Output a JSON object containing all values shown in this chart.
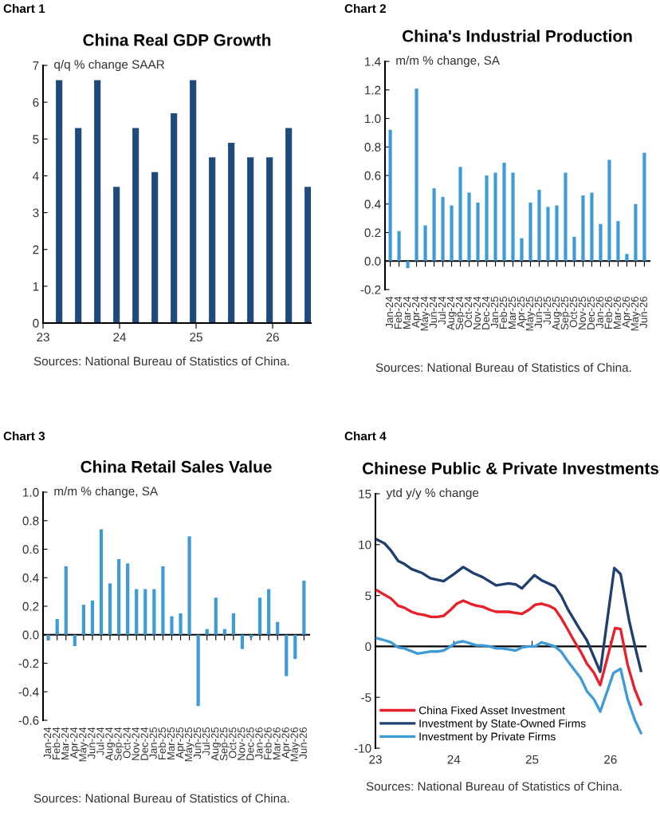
{
  "chart_data": [
    {
      "type": "bar",
      "title": "China Real GDP Growth",
      "ylabel": "q/q % change SAAR",
      "annotations": [
        "Chart 1",
        "Sources: National Bureau of Statistics of China."
      ],
      "x": [
        23.21,
        23.46,
        23.71,
        23.96,
        24.21,
        24.46,
        24.71,
        24.96,
        25.21,
        25.46,
        25.71,
        25.96,
        26.21,
        26.46
      ],
      "values": [
        6.6,
        5.3,
        6.6,
        3.7,
        5.3,
        4.1,
        5.7,
        6.6,
        4.5,
        4.9,
        4.5,
        4.5,
        5.3,
        3.7
      ],
      "color": "#1f4a7c",
      "xlim": [
        23,
        26.5
      ],
      "xticks": [
        23,
        24,
        25,
        26
      ],
      "ylim": [
        0,
        7
      ],
      "yticks": [
        0,
        1,
        2,
        3,
        4,
        5,
        6,
        7
      ]
    },
    {
      "type": "bar",
      "title": "China's Industrial Production",
      "ylabel": "m/m % change, SA",
      "annotations": [
        "Chart 2",
        "Sources: National Bureau of Statistics of China."
      ],
      "categories": [
        "Jan-24",
        "Feb-24",
        "Mar-24",
        "Apr-24",
        "May-24",
        "Jun-24",
        "Jul-24",
        "Aug-24",
        "Sep-24",
        "Oct-24",
        "Nov-24",
        "Dec-24",
        "Jan-25",
        "Feb-25",
        "Mar-25",
        "Apr-25",
        "May-25",
        "Jun-25",
        "Jul-25",
        "Aug-25",
        "Sep-25",
        "Oct-25",
        "Nov-25",
        "Dec-25",
        "Jan-26",
        "Feb-26",
        "Mar-26",
        "Apr-26",
        "May-26",
        "Jun-26"
      ],
      "values": [
        0.92,
        0.21,
        -0.05,
        1.21,
        0.25,
        0.51,
        0.45,
        0.39,
        0.66,
        0.48,
        0.41,
        0.6,
        0.62,
        0.69,
        0.62,
        0.16,
        0.41,
        0.5,
        0.38,
        0.39,
        0.62,
        0.17,
        0.46,
        0.48,
        0.26,
        0.71,
        0.28,
        0.05,
        0.4,
        0.76
      ],
      "color": "#3d9bd5",
      "ylim": [
        -0.2,
        1.4
      ],
      "yticks": [
        {
          "value": -0.2,
          "label": "-0.2"
        },
        {
          "value": 0,
          "label": "0.0"
        },
        0.2,
        0.4,
        0.6,
        0.8,
        {
          "value": 1,
          "label": "1.0"
        },
        1.2,
        1.4
      ]
    },
    {
      "type": "bar",
      "title": "China Retail Sales Value",
      "ylabel": "m/m % change, SA",
      "annotations": [
        "Chart 3",
        "Sources: National Bureau of Statistics of China."
      ],
      "categories": [
        "Jan-24",
        "Feb-24",
        "Mar-24",
        "Apr-24",
        "May-24",
        "Jun-24",
        "Jul-24",
        "Aug-24",
        "Sep-24",
        "Oct-24",
        "Nov-24",
        "Dec-24",
        "Jan-25",
        "Feb-25",
        "Mar-25",
        "Apr-25",
        "May-25",
        "Jun-25",
        "Jul-25",
        "Aug-25",
        "Sep-25",
        "Oct-25",
        "Nov-25",
        "Dec-25",
        "Jan-26",
        "Feb-26",
        "Mar-26",
        "Apr-26",
        "May-26",
        "Jun-26"
      ],
      "values": [
        -0.04,
        0.11,
        0.48,
        -0.08,
        0.21,
        0.24,
        0.74,
        0.36,
        0.53,
        0.5,
        0.32,
        0.32,
        0.32,
        0.48,
        0.13,
        0.15,
        0.69,
        -0.5,
        0.04,
        0.26,
        0.04,
        0.15,
        -0.1,
        -0.02,
        0.26,
        0.32,
        0.09,
        -0.29,
        -0.17,
        0.38
      ],
      "color": "#3d9bd5",
      "ylim": [
        -0.6,
        1.0
      ],
      "yticks": [
        {
          "value": -0.6,
          "label": "-0.6"
        },
        {
          "value": -0.4,
          "label": "-0.4"
        },
        {
          "value": -0.2,
          "label": "-0.2"
        },
        {
          "value": 0,
          "label": "0.0"
        },
        0.2,
        0.4,
        0.6,
        0.8,
        {
          "value": 1,
          "label": "1.0"
        }
      ]
    },
    {
      "type": "line",
      "title": "Chinese Public & Private Investments",
      "ylabel": "ytd y/y % change",
      "annotations": [
        "Chart 4",
        "Sources: National Bureau of Statistics of China."
      ],
      "series": [
        {
          "name": "China Fixed Asset Investment",
          "color": "#e8202a",
          "x": [
            23.02,
            23.2,
            23.29,
            23.37,
            23.46,
            23.54,
            23.62,
            23.71,
            23.79,
            23.87,
            23.96,
            24.04,
            24.12,
            24.21,
            24.29,
            24.37,
            24.46,
            24.54,
            24.7,
            24.79,
            24.87,
            24.96,
            25.04,
            25.12,
            25.21,
            25.29,
            25.37,
            25.46,
            25.54,
            25.62,
            25.7,
            25.79,
            25.87,
            26.06,
            26.13,
            26.22,
            26.31,
            26.39
          ],
          "values": [
            5.5,
            4.7,
            4.0,
            3.8,
            3.4,
            3.2,
            3.1,
            2.9,
            2.9,
            3.0,
            3.6,
            4.2,
            4.5,
            4.2,
            4.0,
            3.9,
            3.6,
            3.4,
            3.4,
            3.3,
            3.2,
            3.6,
            4.1,
            4.2,
            4.0,
            3.7,
            2.8,
            1.6,
            0.5,
            -0.5,
            -1.7,
            -2.6,
            -3.8,
            1.8,
            1.7,
            -1.8,
            -4.2,
            -5.7
          ]
        },
        {
          "name": "Investment by State-Owned Firms",
          "color": "#1f3f6e",
          "x": [
            23.02,
            23.12,
            23.2,
            23.29,
            23.37,
            23.46,
            23.6,
            23.7,
            23.87,
            24.0,
            24.12,
            24.25,
            24.37,
            24.54,
            24.7,
            24.79,
            24.87,
            25.03,
            25.12,
            25.29,
            25.37,
            25.46,
            25.6,
            25.7,
            25.87,
            26.05,
            26.13,
            26.24,
            26.33,
            26.39
          ],
          "values": [
            10.5,
            10.1,
            9.4,
            8.4,
            8.1,
            7.6,
            7.2,
            6.7,
            6.4,
            7.1,
            7.8,
            7.2,
            6.8,
            6.0,
            6.2,
            6.1,
            5.7,
            7.0,
            6.5,
            5.9,
            5.0,
            3.6,
            1.8,
            0.6,
            -2.5,
            7.7,
            7.1,
            2.5,
            -0.5,
            -2.4
          ]
        },
        {
          "name": "Investment by Private Firms",
          "color": "#3d9bd5",
          "x": [
            23.02,
            23.12,
            23.2,
            23.29,
            23.37,
            23.54,
            23.62,
            23.7,
            23.79,
            23.87,
            23.96,
            24.04,
            24.12,
            24.21,
            24.29,
            24.37,
            24.46,
            24.54,
            24.62,
            24.7,
            24.79,
            24.87,
            24.96,
            25.04,
            25.12,
            25.21,
            25.29,
            25.37,
            25.46,
            25.54,
            25.62,
            25.7,
            25.79,
            25.87,
            25.96,
            26.04,
            26.13,
            26.22,
            26.31,
            26.39
          ],
          "values": [
            0.8,
            0.6,
            0.4,
            -0.1,
            -0.2,
            -0.7,
            -0.6,
            -0.5,
            -0.5,
            -0.4,
            0.0,
            0.4,
            0.5,
            0.3,
            0.1,
            0.1,
            0.0,
            -0.2,
            -0.2,
            -0.3,
            -0.4,
            -0.1,
            0.0,
            0.0,
            0.4,
            0.2,
            0.0,
            -0.5,
            -1.5,
            -2.3,
            -3.1,
            -4.4,
            -5.2,
            -6.4,
            -4.4,
            -2.6,
            -2.2,
            -5.2,
            -7.2,
            -8.5
          ]
        }
      ],
      "xlim": [
        23,
        26.45
      ],
      "xticks": [
        23,
        24,
        25,
        26
      ],
      "ylim": [
        -10,
        15
      ],
      "yticks": [
        -10,
        -5,
        0,
        5,
        10,
        15
      ],
      "legend": "bottom left",
      "line_style": "solid"
    }
  ]
}
